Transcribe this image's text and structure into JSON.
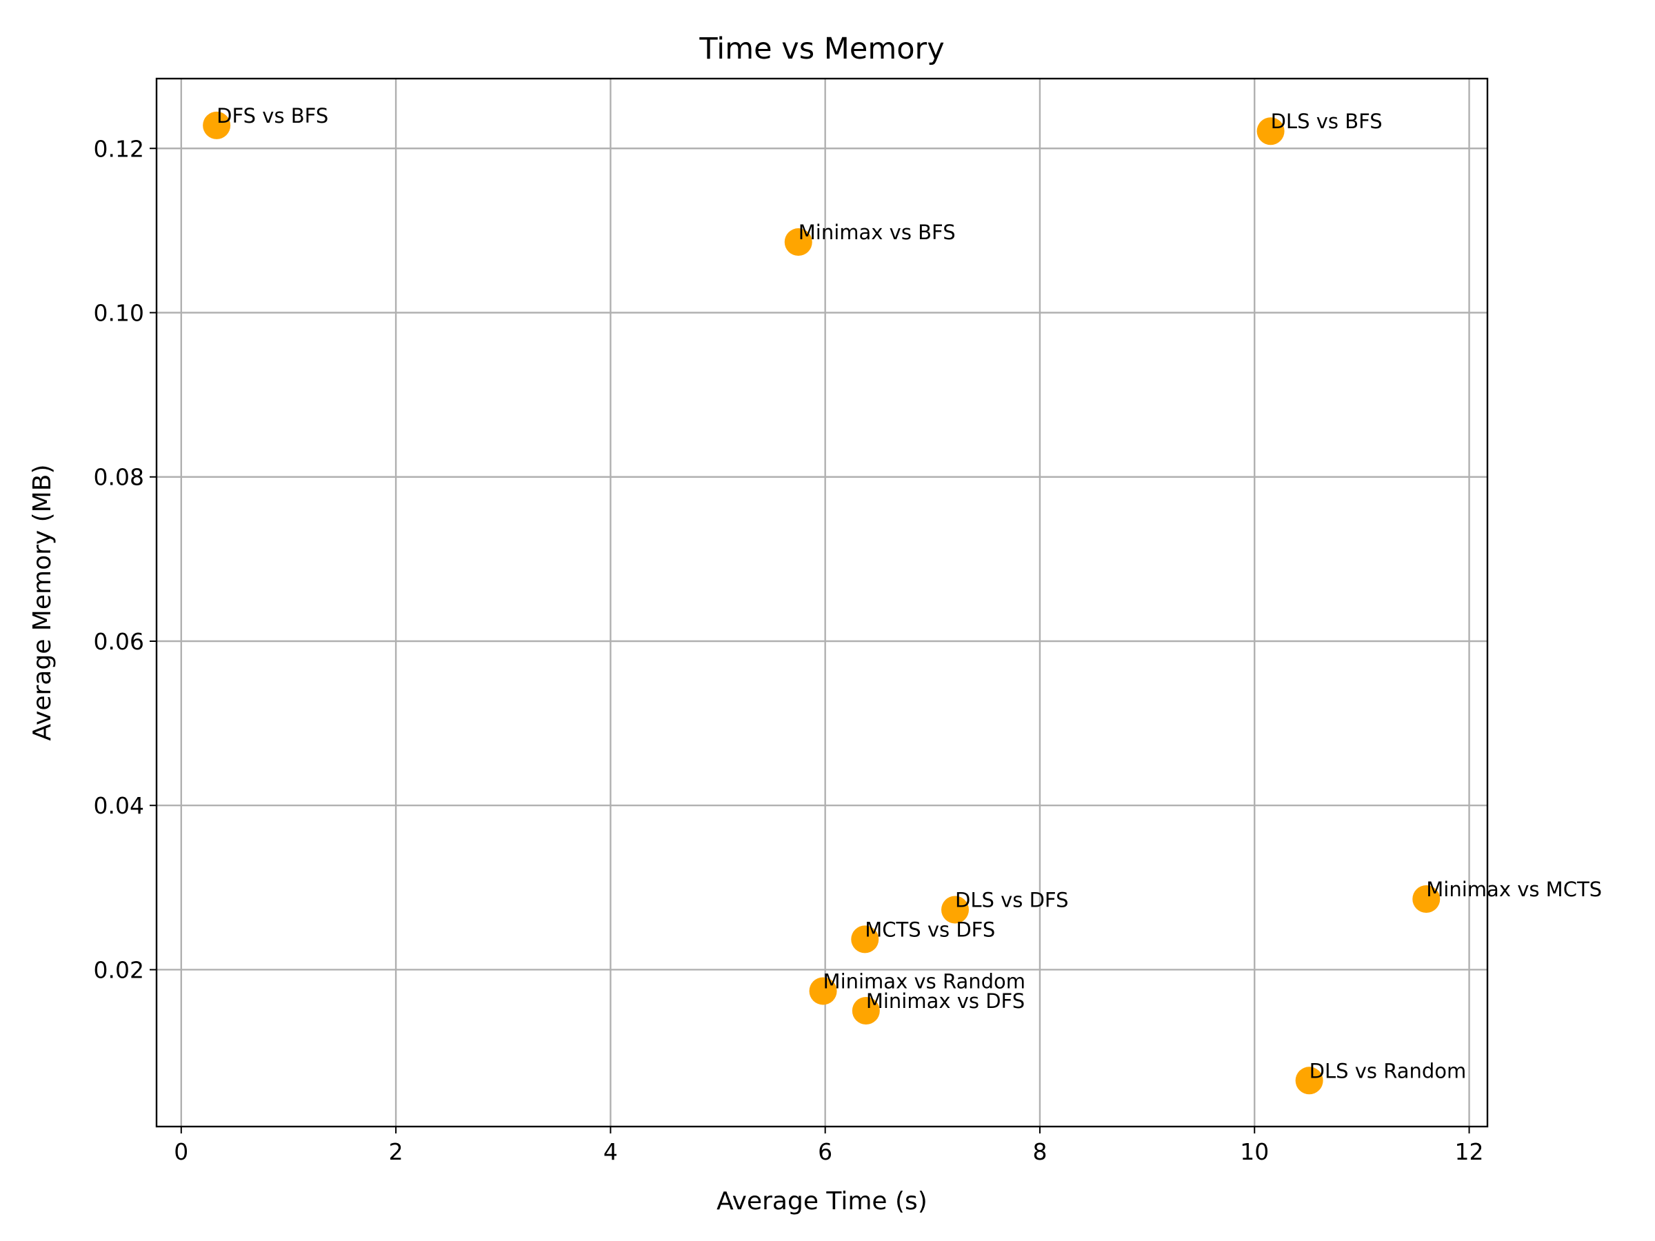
{
  "chart_data": {
    "type": "scatter",
    "title": "Time vs Memory",
    "xlabel": "Average Time (s)",
    "ylabel": "Average Memory (MB)",
    "xlim": [
      -0.23,
      12.17
    ],
    "ylim": [
      0.0009,
      0.1285
    ],
    "xticks": [
      0,
      2,
      4,
      6,
      8,
      10,
      12
    ],
    "xtick_labels": [
      "0",
      "2",
      "4",
      "6",
      "8",
      "10",
      "12"
    ],
    "yticks": [
      0.02,
      0.04,
      0.06,
      0.08,
      0.1,
      0.12
    ],
    "ytick_labels": [
      "0.02",
      "0.04",
      "0.06",
      "0.08",
      "0.10",
      "0.12"
    ],
    "grid": true,
    "marker_color": "#FFA500",
    "points": [
      {
        "label": "DFS vs BFS",
        "x": 0.33,
        "y": 0.1228
      },
      {
        "label": "DLS vs BFS",
        "x": 10.15,
        "y": 0.1221
      },
      {
        "label": "Minimax vs BFS",
        "x": 5.75,
        "y": 0.1086
      },
      {
        "label": "DLS vs DFS",
        "x": 7.21,
        "y": 0.0273
      },
      {
        "label": "Minimax vs MCTS",
        "x": 11.6,
        "y": 0.0286
      },
      {
        "label": "MCTS vs DFS",
        "x": 6.37,
        "y": 0.0237
      },
      {
        "label": "Minimax vs Random",
        "x": 5.98,
        "y": 0.0174
      },
      {
        "label": "Minimax vs DFS",
        "x": 6.38,
        "y": 0.015
      },
      {
        "label": "DLS vs Random",
        "x": 10.51,
        "y": 0.0065
      }
    ]
  }
}
